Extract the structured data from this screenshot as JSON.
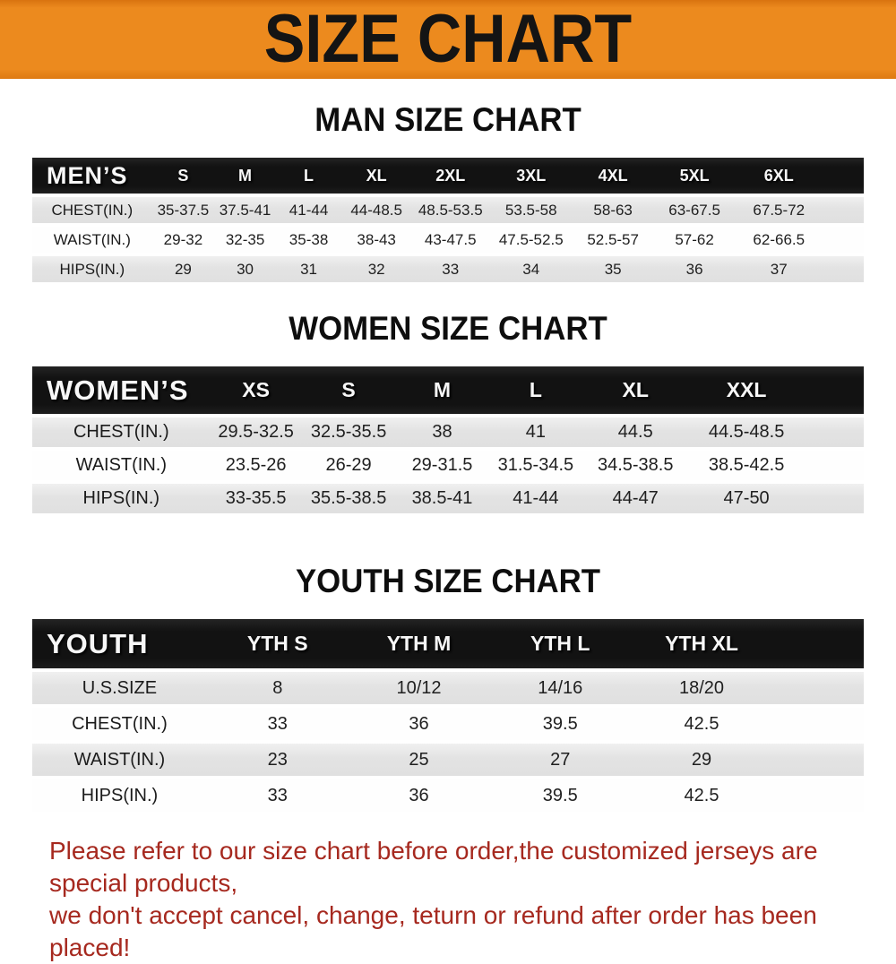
{
  "banner": {
    "title": "SIZE CHART"
  },
  "colors": {
    "banner_bg": "#EC8A1E",
    "header_bar_bg": "#121212",
    "row_stripe": "#E3E3E3",
    "note_text": "#A6291F"
  },
  "sections": [
    {
      "title": "MAN SIZE CHART",
      "header_label": "MEN’S",
      "sizes": [
        "S",
        "M",
        "L",
        "XL",
        "2XL",
        "3XL",
        "4XL",
        "5XL",
        "6XL"
      ],
      "rows": [
        {
          "label": "CHEST(IN.)",
          "values": [
            "35-37.5",
            "37.5-41",
            "41-44",
            "44-48.5",
            "48.5-53.5",
            "53.5-58",
            "58-63",
            "63-67.5",
            "67.5-72"
          ]
        },
        {
          "label": "WAIST(IN.)",
          "values": [
            "29-32",
            "32-35",
            "35-38",
            "38-43",
            "43-47.5",
            "47.5-52.5",
            "52.5-57",
            "57-62",
            "62-66.5"
          ]
        },
        {
          "label": "HIPS(IN.)",
          "values": [
            "29",
            "30",
            "31",
            "32",
            "33",
            "34",
            "35",
            "36",
            "37"
          ]
        }
      ]
    },
    {
      "title": "WOMEN SIZE CHART",
      "header_label": "WOMEN’S",
      "sizes": [
        "XS",
        "S",
        "M",
        "L",
        "XL",
        "XXL"
      ],
      "rows": [
        {
          "label": "CHEST(IN.)",
          "values": [
            "29.5-32.5",
            "32.5-35.5",
            "38",
            "41",
            "44.5",
            "44.5-48.5"
          ]
        },
        {
          "label": "WAIST(IN.)",
          "values": [
            "23.5-26",
            "26-29",
            "29-31.5",
            "31.5-34.5",
            "34.5-38.5",
            "38.5-42.5"
          ]
        },
        {
          "label": "HIPS(IN.)",
          "values": [
            "33-35.5",
            "35.5-38.5",
            "38.5-41",
            "41-44",
            "44-47",
            "47-50"
          ]
        }
      ]
    },
    {
      "title": "YOUTH SIZE CHART",
      "header_label": "YOUTH",
      "sizes": [
        "YTH S",
        "YTH M",
        "YTH L",
        "YTH XL"
      ],
      "rows": [
        {
          "label": "U.S.SIZE",
          "values": [
            "8",
            "10/12",
            "14/16",
            "18/20"
          ]
        },
        {
          "label": "CHEST(IN.)",
          "values": [
            "33",
            "36",
            "39.5",
            "42.5"
          ]
        },
        {
          "label": "WAIST(IN.)",
          "values": [
            "23",
            "25",
            "27",
            "29"
          ]
        },
        {
          "label": "HIPS(IN.)",
          "values": [
            "33",
            "36",
            "39.5",
            "42.5"
          ]
        }
      ]
    }
  ],
  "footer": {
    "line1": "Please refer to our size chart before order,the customized jerseys are special products,",
    "line2": "we don't accept cancel, change, teturn or refund after order has been placed!"
  }
}
